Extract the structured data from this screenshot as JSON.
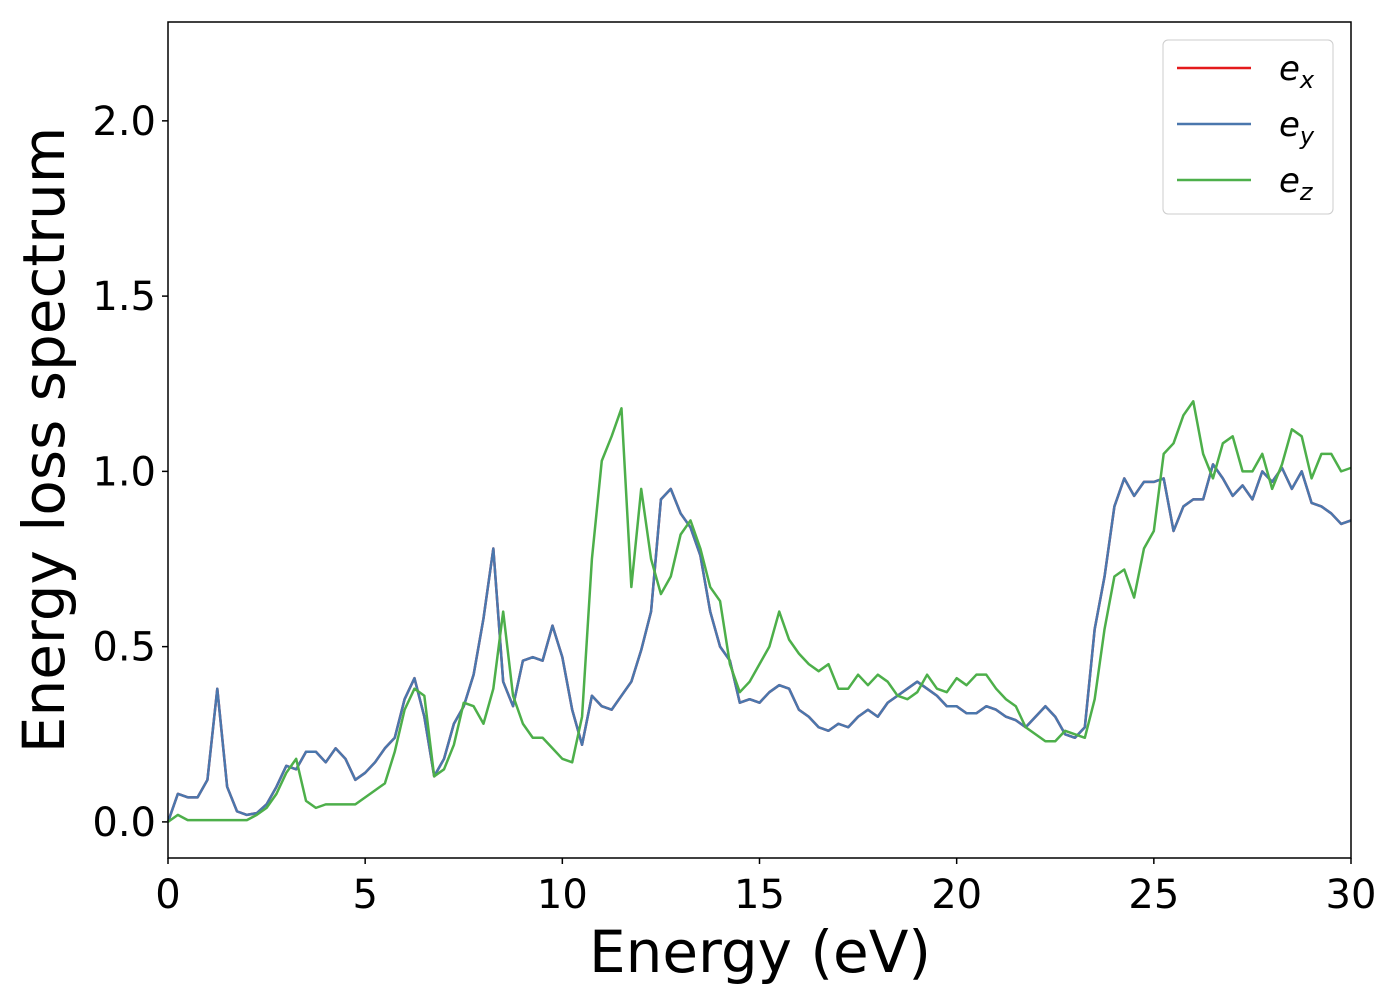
{
  "chart_data": {
    "type": "line",
    "x_label": "Energy (eV)",
    "y_label": "Energy loss spectrum",
    "x": [
      0,
      0.25,
      0.5,
      0.75,
      1,
      1.25,
      1.5,
      1.75,
      2,
      2.25,
      2.5,
      2.75,
      3,
      3.25,
      3.5,
      3.75,
      4,
      4.25,
      4.5,
      4.75,
      5,
      5.25,
      5.5,
      5.75,
      6,
      6.25,
      6.5,
      6.75,
      7,
      7.25,
      7.5,
      7.75,
      8,
      8.25,
      8.5,
      8.75,
      9,
      9.25,
      9.5,
      9.75,
      10,
      10.25,
      10.5,
      10.75,
      11,
      11.25,
      11.5,
      11.75,
      12,
      12.25,
      12.5,
      12.75,
      13,
      13.25,
      13.5,
      13.75,
      14,
      14.25,
      14.5,
      14.75,
      15,
      15.25,
      15.5,
      15.75,
      16,
      16.25,
      16.5,
      16.75,
      17,
      17.25,
      17.5,
      17.75,
      18,
      18.25,
      18.5,
      18.75,
      19,
      19.25,
      19.5,
      19.75,
      20,
      20.25,
      20.5,
      20.75,
      21,
      21.25,
      21.5,
      21.75,
      22,
      22.25,
      22.5,
      22.75,
      23,
      23.25,
      23.5,
      23.75,
      24,
      24.25,
      24.5,
      24.75,
      25,
      25.25,
      25.5,
      25.75,
      26,
      26.25,
      26.5,
      26.75,
      27,
      27.25,
      27.5,
      27.75,
      28,
      28.25,
      28.5,
      28.75,
      29,
      29.25,
      29.5,
      29.75,
      30
    ],
    "series": [
      {
        "name": "e_x",
        "color": "#e41a1c",
        "values": [
          0,
          0.08,
          0.07,
          0.07,
          0.12,
          0.38,
          0.1,
          0.03,
          0.02,
          0.025,
          0.05,
          0.1,
          0.16,
          0.15,
          0.2,
          0.2,
          0.17,
          0.21,
          0.18,
          0.12,
          0.14,
          0.17,
          0.21,
          0.24,
          0.35,
          0.41,
          0.3,
          0.13,
          0.18,
          0.28,
          0.33,
          0.42,
          0.58,
          0.78,
          0.4,
          0.33,
          0.46,
          0.47,
          0.46,
          0.56,
          0.47,
          0.32,
          0.22,
          0.36,
          0.33,
          0.32,
          0.36,
          0.4,
          0.49,
          0.6,
          0.92,
          0.95,
          0.88,
          0.84,
          0.76,
          0.6,
          0.5,
          0.46,
          0.34,
          0.35,
          0.34,
          0.37,
          0.39,
          0.38,
          0.32,
          0.3,
          0.27,
          0.26,
          0.28,
          0.27,
          0.3,
          0.32,
          0.3,
          0.34,
          0.36,
          0.38,
          0.4,
          0.38,
          0.36,
          0.33,
          0.33,
          0.31,
          0.31,
          0.33,
          0.32,
          0.3,
          0.29,
          0.27,
          0.3,
          0.33,
          0.3,
          0.25,
          0.24,
          0.27,
          0.55,
          0.7,
          0.9,
          0.98,
          0.93,
          0.97,
          0.97,
          0.98,
          0.83,
          0.9,
          0.92,
          0.92,
          1.02,
          0.98,
          0.93,
          0.96,
          0.92,
          1.0,
          0.97,
          1.01,
          0.95,
          1.0,
          0.91,
          0.9,
          0.88,
          0.85,
          0.86
        ]
      },
      {
        "name": "e_y",
        "color": "#4a77ad",
        "values": [
          0,
          0.08,
          0.07,
          0.07,
          0.12,
          0.38,
          0.1,
          0.03,
          0.02,
          0.025,
          0.05,
          0.1,
          0.16,
          0.15,
          0.2,
          0.2,
          0.17,
          0.21,
          0.18,
          0.12,
          0.14,
          0.17,
          0.21,
          0.24,
          0.35,
          0.41,
          0.3,
          0.13,
          0.18,
          0.28,
          0.33,
          0.42,
          0.58,
          0.78,
          0.4,
          0.33,
          0.46,
          0.47,
          0.46,
          0.56,
          0.47,
          0.32,
          0.22,
          0.36,
          0.33,
          0.32,
          0.36,
          0.4,
          0.49,
          0.6,
          0.92,
          0.95,
          0.88,
          0.84,
          0.76,
          0.6,
          0.5,
          0.46,
          0.34,
          0.35,
          0.34,
          0.37,
          0.39,
          0.38,
          0.32,
          0.3,
          0.27,
          0.26,
          0.28,
          0.27,
          0.3,
          0.32,
          0.3,
          0.34,
          0.36,
          0.38,
          0.4,
          0.38,
          0.36,
          0.33,
          0.33,
          0.31,
          0.31,
          0.33,
          0.32,
          0.3,
          0.29,
          0.27,
          0.3,
          0.33,
          0.3,
          0.25,
          0.24,
          0.27,
          0.55,
          0.7,
          0.9,
          0.98,
          0.93,
          0.97,
          0.97,
          0.98,
          0.83,
          0.9,
          0.92,
          0.92,
          1.02,
          0.98,
          0.93,
          0.96,
          0.92,
          1.0,
          0.97,
          1.01,
          0.95,
          1.0,
          0.91,
          0.9,
          0.88,
          0.85,
          0.86
        ]
      },
      {
        "name": "e_z",
        "color": "#4daf4a",
        "values": [
          0,
          0.02,
          0.005,
          0.005,
          0.005,
          0.005,
          0.005,
          0.005,
          0.005,
          0.02,
          0.04,
          0.08,
          0.14,
          0.18,
          0.06,
          0.04,
          0.05,
          0.05,
          0.05,
          0.05,
          0.07,
          0.09,
          0.11,
          0.2,
          0.32,
          0.38,
          0.36,
          0.13,
          0.15,
          0.22,
          0.34,
          0.33,
          0.28,
          0.38,
          0.6,
          0.36,
          0.28,
          0.24,
          0.24,
          0.21,
          0.18,
          0.17,
          0.3,
          0.75,
          1.03,
          1.1,
          1.18,
          0.67,
          0.95,
          0.75,
          0.65,
          0.7,
          0.82,
          0.86,
          0.78,
          0.67,
          0.63,
          0.45,
          0.37,
          0.4,
          0.45,
          0.5,
          0.6,
          0.52,
          0.48,
          0.45,
          0.43,
          0.45,
          0.38,
          0.38,
          0.42,
          0.39,
          0.42,
          0.4,
          0.36,
          0.35,
          0.37,
          0.42,
          0.38,
          0.37,
          0.41,
          0.39,
          0.42,
          0.42,
          0.38,
          0.35,
          0.33,
          0.27,
          0.25,
          0.23,
          0.23,
          0.26,
          0.25,
          0.24,
          0.35,
          0.55,
          0.7,
          0.72,
          0.64,
          0.78,
          0.83,
          1.05,
          1.08,
          1.16,
          1.2,
          1.05,
          0.98,
          1.08,
          1.1,
          1.0,
          1.0,
          1.05,
          0.95,
          1.02,
          1.12,
          1.1,
          0.98,
          1.05,
          1.05,
          1.0,
          1.01
        ]
      }
    ],
    "xlim": [
      0,
      30
    ],
    "xticks": [
      0,
      5,
      10,
      15,
      20,
      25,
      30
    ],
    "ylim": [
      -0.103,
      2.282
    ],
    "yticks": [
      {
        "value": 0,
        "label": "0.0"
      },
      0.5,
      {
        "value": 1,
        "label": "1.0"
      },
      1.5,
      {
        "value": 2,
        "label": "2.0"
      }
    ],
    "legend": "upper right"
  }
}
